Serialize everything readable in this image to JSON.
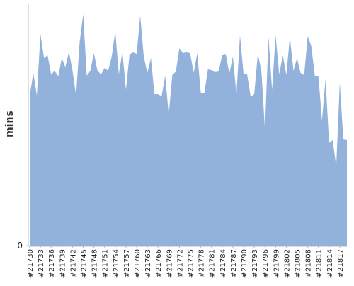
{
  "chart_data": {
    "type": "area",
    "ylabel": "mins",
    "color": "#92b2db",
    "categories": [
      "#21730",
      null,
      null,
      "#21733",
      null,
      null,
      "#21736",
      null,
      null,
      "#21739",
      null,
      null,
      "#21742",
      null,
      null,
      "#21745",
      null,
      null,
      "#21748",
      null,
      null,
      "#21751",
      null,
      null,
      "#21754",
      null,
      null,
      "#21757",
      null,
      null,
      "#21760",
      null,
      null,
      "#21763",
      null,
      null,
      "#21766",
      null,
      null,
      "#21769",
      null,
      null,
      "#21772",
      null,
      null,
      "#21775",
      null,
      null,
      "#21778",
      null,
      null,
      "#21781",
      null,
      null,
      "#21784",
      null,
      null,
      "#21787",
      null,
      null,
      "#21790",
      null,
      null,
      "#21793",
      null,
      null,
      "#21796",
      null,
      null,
      "#21799",
      null,
      null,
      "#21802",
      null,
      null,
      "#21805",
      null,
      null,
      "#21808",
      null,
      null,
      "#21811",
      null,
      null,
      "#21814",
      null,
      null,
      "#21817",
      null,
      null
    ],
    "values": [
      212,
      244,
      212,
      299,
      265,
      269,
      242,
      247,
      239,
      265,
      252,
      274,
      247,
      212,
      287,
      327,
      240,
      247,
      272,
      247,
      242,
      251,
      247,
      267,
      303,
      242,
      274,
      220,
      270,
      273,
      271,
      325,
      267,
      244,
      265,
      214,
      214,
      211,
      240,
      185,
      241,
      246,
      279,
      272,
      273,
      272,
      244,
      272,
      216,
      216,
      249,
      248,
      245,
      246,
      269,
      271,
      243,
      267,
      214,
      297,
      242,
      242,
      210,
      214,
      271,
      247,
      164,
      295,
      220,
      297,
      242,
      269,
      241,
      295,
      247,
      265,
      244,
      241,
      296,
      282,
      240,
      239,
      177,
      235,
      145,
      149,
      112,
      230,
      150,
      149
    ],
    "ylim": [
      0,
      342
    ],
    "yticks": [
      0
    ]
  }
}
